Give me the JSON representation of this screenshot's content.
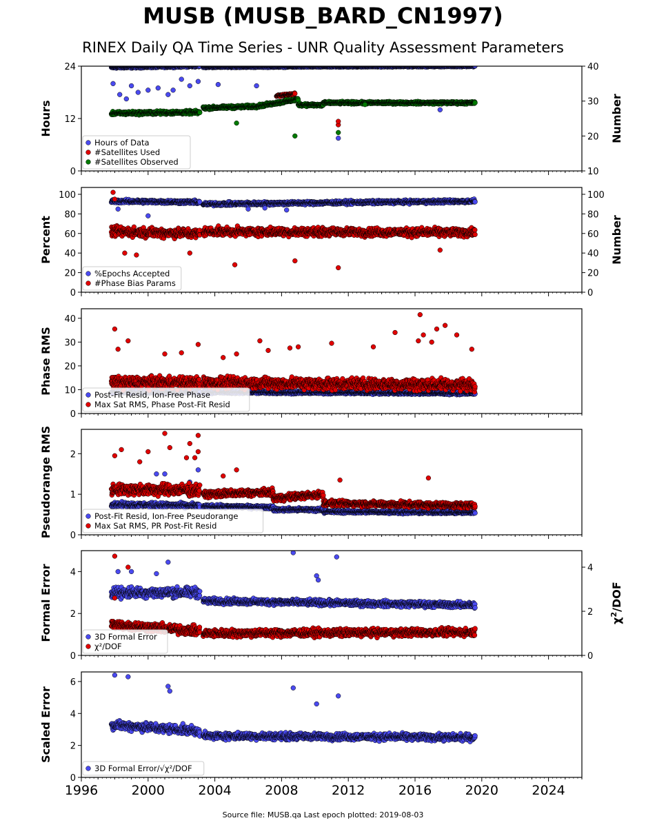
{
  "header": {
    "title": "MUSB (MUSB_BARD_CN1997)",
    "subtitle": "RINEX Daily QA Time Series - UNR Quality Assessment Parameters"
  },
  "footer": {
    "source": "Source file: MUSB.qa Last epoch plotted: 2019-08-03"
  },
  "colors": {
    "blue": "#4a4af0",
    "red": "#e00000",
    "green": "#007a00",
    "edge": "#000000"
  },
  "chart_data": [
    {
      "type": "scatter",
      "ylabel": "Hours",
      "ylabel_right": "Number",
      "xlim": [
        1996,
        2026
      ],
      "ylim": [
        0,
        24
      ],
      "yticks": [
        0,
        12,
        24
      ],
      "ylim_right": [
        10,
        40
      ],
      "yticks_right": [
        10,
        20,
        30,
        40
      ],
      "legend_position": "lower-left",
      "series": [
        {
          "name": "Hours of Data",
          "color": "blue",
          "axis": "left",
          "base": 23.9,
          "segments": [
            {
              "x": [
                1997.8,
                2003.1
              ],
              "y": [
                23.7,
                24.0
              ],
              "spread": 0.3
            },
            {
              "x": [
                2003.3,
                2019.6
              ],
              "y": [
                23.8,
                24.0
              ],
              "spread": 0.2
            }
          ],
          "outliers": [
            [
              1997.9,
              20.0
            ],
            [
              1998.3,
              17.5
            ],
            [
              1998.7,
              16.5
            ],
            [
              1999.0,
              19.5
            ],
            [
              1999.4,
              18.0
            ],
            [
              2000.0,
              18.5
            ],
            [
              2000.6,
              19.0
            ],
            [
              2001.2,
              17.5
            ],
            [
              2001.5,
              18.5
            ],
            [
              2002.0,
              21.0
            ],
            [
              2002.5,
              19.5
            ],
            [
              2003.0,
              20.5
            ],
            [
              2004.2,
              19.8
            ],
            [
              2006.5,
              19.5
            ],
            [
              2011.4,
              7.5
            ],
            [
              2017.5,
              14.0
            ]
          ]
        },
        {
          "name": "#Satellites Used",
          "color": "red",
          "axis": "right",
          "segments": [
            {
              "x": [
                2007.7,
                2008.8
              ],
              "y": [
                31.5,
                32.0
              ],
              "spread": 0.4
            }
          ],
          "outliers": [
            [
              2011.4,
              23.2
            ],
            [
              2011.4,
              24.2
            ]
          ]
        },
        {
          "name": "#Satellites Observed",
          "color": "green",
          "axis": "right",
          "segments": [
            {
              "x": [
                1997.8,
                2003.1
              ],
              "y": [
                26.5,
                26.8
              ],
              "spread": 0.7
            },
            {
              "x": [
                2003.3,
                2006.5
              ],
              "y": [
                28.0,
                28.5
              ],
              "spread": 0.6
            },
            {
              "x": [
                2006.5,
                2009.0
              ],
              "y": [
                28.5,
                30.5
              ],
              "spread": 0.6
            },
            {
              "x": [
                2009.0,
                2010.5
              ],
              "y": [
                29.0,
                28.8
              ],
              "spread": 0.6
            },
            {
              "x": [
                2010.5,
                2019.6
              ],
              "y": [
                29.5,
                29.5
              ],
              "spread": 0.5
            }
          ],
          "outliers": [
            [
              2005.3,
              23.7
            ],
            [
              2008.8,
              20.0
            ],
            [
              2011.4,
              21.0
            ],
            [
              2013.0,
              29.0
            ]
          ]
        }
      ],
      "show_xticklabels": false
    },
    {
      "type": "scatter",
      "ylabel": "Percent",
      "ylabel_right": "Number",
      "xlim": [
        1996,
        2026
      ],
      "ylim": [
        0,
        107
      ],
      "yticks": [
        0,
        20,
        40,
        60,
        80,
        100
      ],
      "ylim_right": [
        0,
        107
      ],
      "yticks_right": [
        0,
        20,
        40,
        60,
        80,
        100
      ],
      "legend_position": "lower-left",
      "series": [
        {
          "name": "%Epochs Accepted",
          "color": "blue",
          "axis": "left",
          "segments": [
            {
              "x": [
                1997.8,
                2003.1
              ],
              "y": [
                93,
                92
              ],
              "spread": 2.5
            },
            {
              "x": [
                2003.3,
                2019.6
              ],
              "y": [
                90,
                93
              ],
              "spread": 2.5
            }
          ],
          "outliers": [
            [
              1998.2,
              85
            ],
            [
              2000.0,
              78
            ],
            [
              2006.0,
              85
            ],
            [
              2007.0,
              86
            ],
            [
              2008.3,
              84
            ]
          ]
        },
        {
          "name": "#Phase Bias Params",
          "color": "red",
          "axis": "right",
          "segments": [
            {
              "x": [
                1997.8,
                2003.1
              ],
              "y": [
                62,
                60
              ],
              "spread": 7
            },
            {
              "x": [
                2003.3,
                2019.6
              ],
              "y": [
                62,
                61
              ],
              "spread": 6
            }
          ],
          "outliers": [
            [
              1997.9,
              102
            ],
            [
              1998.0,
              95
            ],
            [
              1998.6,
              40
            ],
            [
              1999.3,
              38
            ],
            [
              2002.5,
              40
            ],
            [
              2005.2,
              28
            ],
            [
              2008.8,
              32
            ],
            [
              2011.4,
              25
            ],
            [
              2017.5,
              43
            ]
          ]
        }
      ],
      "show_xticklabels": false
    },
    {
      "type": "scatter",
      "ylabel": "Phase RMS",
      "xlim": [
        1996,
        2026
      ],
      "ylim": [
        0,
        44
      ],
      "yticks": [
        0,
        10,
        20,
        30,
        40
      ],
      "legend_position": "lower-left",
      "series": [
        {
          "name": "Post-Fit Resid, Ion-Free Phase",
          "color": "blue",
          "axis": "left",
          "segments": [
            {
              "x": [
                1997.8,
                2003.1
              ],
              "y": [
                9.0,
                9.0
              ],
              "spread": 0.8
            },
            {
              "x": [
                2003.3,
                2019.6
              ],
              "y": [
                9.0,
                8.5
              ],
              "spread": 0.8
            }
          ],
          "outliers": []
        },
        {
          "name": "Max Sat RMS, Phase Post-Fit Resid",
          "color": "red",
          "axis": "left",
          "segments": [
            {
              "x": [
                1997.8,
                2003.1
              ],
              "y": [
                13,
                13
              ],
              "spread": 3.5
            },
            {
              "x": [
                2003.3,
                2019.6
              ],
              "y": [
                13,
                12
              ],
              "spread": 3.5
            }
          ],
          "outliers": [
            [
              1998.0,
              35.5
            ],
            [
              1998.8,
              30.5
            ],
            [
              1998.2,
              27.0
            ],
            [
              2001.0,
              25.0
            ],
            [
              2002.0,
              25.5
            ],
            [
              2003.0,
              29.0
            ],
            [
              2004.5,
              23.5
            ],
            [
              2005.3,
              25.0
            ],
            [
              2006.7,
              30.5
            ],
            [
              2007.2,
              26.5
            ],
            [
              2008.5,
              27.5
            ],
            [
              2009.0,
              28.0
            ],
            [
              2011.0,
              29.5
            ],
            [
              2014.8,
              34.0
            ],
            [
              2016.3,
              41.5
            ],
            [
              2016.2,
              30.5
            ],
            [
              2016.5,
              33.0
            ],
            [
              2017.0,
              30.0
            ],
            [
              2017.3,
              35.5
            ],
            [
              2017.8,
              37.0
            ],
            [
              2018.5,
              33.0
            ],
            [
              2019.4,
              27.0
            ],
            [
              2013.5,
              28.0
            ]
          ]
        }
      ],
      "show_xticklabels": false
    },
    {
      "type": "scatter",
      "ylabel": "Pseudorange RMS",
      "xlim": [
        1996,
        2026
      ],
      "ylim": [
        0,
        2.6
      ],
      "yticks": [
        0,
        1,
        2
      ],
      "legend_position": "lower-left",
      "series": [
        {
          "name": "Post-Fit Resid, Ion-Free Pseudorange",
          "color": "blue",
          "axis": "left",
          "segments": [
            {
              "x": [
                1997.8,
                2003.1
              ],
              "y": [
                0.75,
                0.72
              ],
              "spread": 0.08
            },
            {
              "x": [
                2003.3,
                2007.5
              ],
              "y": [
                0.7,
                0.68
              ],
              "spread": 0.06
            },
            {
              "x": [
                2007.5,
                2010.5
              ],
              "y": [
                0.62,
                0.62
              ],
              "spread": 0.06
            },
            {
              "x": [
                2010.5,
                2019.6
              ],
              "y": [
                0.57,
                0.55
              ],
              "spread": 0.05
            }
          ],
          "outliers": [
            [
              2000.5,
              1.5
            ],
            [
              2001.0,
              1.5
            ],
            [
              2002.5,
              1.3
            ],
            [
              2003.0,
              1.6
            ]
          ]
        },
        {
          "name": "Max Sat RMS, PR Post-Fit Resid",
          "color": "red",
          "axis": "left",
          "segments": [
            {
              "x": [
                1997.8,
                2003.1
              ],
              "y": [
                1.12,
                1.1
              ],
              "spread": 0.2
            },
            {
              "x": [
                2003.3,
                2007.5
              ],
              "y": [
                1.0,
                1.05
              ],
              "spread": 0.12
            },
            {
              "x": [
                2007.5,
                2010.5
              ],
              "y": [
                0.9,
                1.0
              ],
              "spread": 0.12
            },
            {
              "x": [
                2010.5,
                2019.6
              ],
              "y": [
                0.78,
                0.72
              ],
              "spread": 0.1
            }
          ],
          "outliers": [
            [
              1998.0,
              1.95
            ],
            [
              1998.4,
              2.1
            ],
            [
              1999.5,
              1.8
            ],
            [
              2000.0,
              2.05
            ],
            [
              2001.0,
              2.5
            ],
            [
              2001.3,
              2.15
            ],
            [
              2002.3,
              1.9
            ],
            [
              2002.5,
              2.25
            ],
            [
              2002.8,
              1.9
            ],
            [
              2003.0,
              2.45
            ],
            [
              2003.0,
              2.05
            ],
            [
              2004.5,
              1.45
            ],
            [
              2005.3,
              1.6
            ],
            [
              2011.5,
              1.35
            ],
            [
              2016.8,
              1.4
            ]
          ]
        }
      ],
      "show_xticklabels": false
    },
    {
      "type": "scatter",
      "ylabel": "Formal Error",
      "ylabel_right": "χ²/DOF",
      "xlim": [
        1996,
        2026
      ],
      "ylim": [
        0,
        5
      ],
      "yticks": [
        0,
        2,
        4
      ],
      "ylim_right": [
        0,
        4.75
      ],
      "yticks_right": [
        0,
        2,
        4
      ],
      "legend_position": "lower-left",
      "series": [
        {
          "name": "3D Formal Error",
          "color": "blue",
          "axis": "left",
          "segments": [
            {
              "x": [
                1997.8,
                2003.1
              ],
              "y": [
                3.0,
                3.0
              ],
              "spread": 0.35
            },
            {
              "x": [
                2003.3,
                2019.6
              ],
              "y": [
                2.6,
                2.4
              ],
              "spread": 0.2
            }
          ],
          "outliers": [
            [
              1998.2,
              4.0
            ],
            [
              1999.0,
              4.0
            ],
            [
              2000.5,
              3.9
            ],
            [
              2001.2,
              4.45
            ],
            [
              2008.7,
              4.9
            ],
            [
              2011.3,
              4.7
            ],
            [
              2010.1,
              3.8
            ],
            [
              2010.2,
              3.6
            ]
          ]
        },
        {
          "name": "χ²/DOF",
          "color": "red",
          "axis": "right",
          "segments": [
            {
              "x": [
                1997.8,
                2003.1
              ],
              "y": [
                1.4,
                1.1
              ],
              "spread": 0.3
            },
            {
              "x": [
                2003.3,
                2019.6
              ],
              "y": [
                1.0,
                1.05
              ],
              "spread": 0.25
            }
          ],
          "outliers": [
            [
              1998.0,
              4.5
            ],
            [
              1998.8,
              4.0
            ],
            [
              1998.0,
              2.6
            ]
          ]
        }
      ],
      "show_xticklabels": false
    },
    {
      "type": "scatter",
      "ylabel": "Scaled Error",
      "xlim": [
        1996,
        2026
      ],
      "ylim": [
        0,
        6.6
      ],
      "yticks": [
        0,
        2,
        4,
        6
      ],
      "legend_position": "lower-left",
      "series": [
        {
          "name": "3D Formal Error/√χ²/DOF",
          "color": "blue",
          "axis": "left",
          "segments": [
            {
              "x": [
                1997.8,
                2003.1
              ],
              "y": [
                3.3,
                2.9
              ],
              "spread": 0.4
            },
            {
              "x": [
                2003.3,
                2019.6
              ],
              "y": [
                2.6,
                2.5
              ],
              "spread": 0.3
            }
          ],
          "outliers": [
            [
              1998.0,
              6.4
            ],
            [
              1998.8,
              6.3
            ],
            [
              2001.2,
              5.7
            ],
            [
              2001.3,
              5.4
            ],
            [
              2008.7,
              5.6
            ],
            [
              2011.4,
              5.1
            ],
            [
              2010.1,
              4.6
            ]
          ]
        }
      ],
      "show_xticklabels": true,
      "xticks": [
        1996,
        2000,
        2004,
        2008,
        2012,
        2016,
        2020,
        2024
      ]
    }
  ]
}
